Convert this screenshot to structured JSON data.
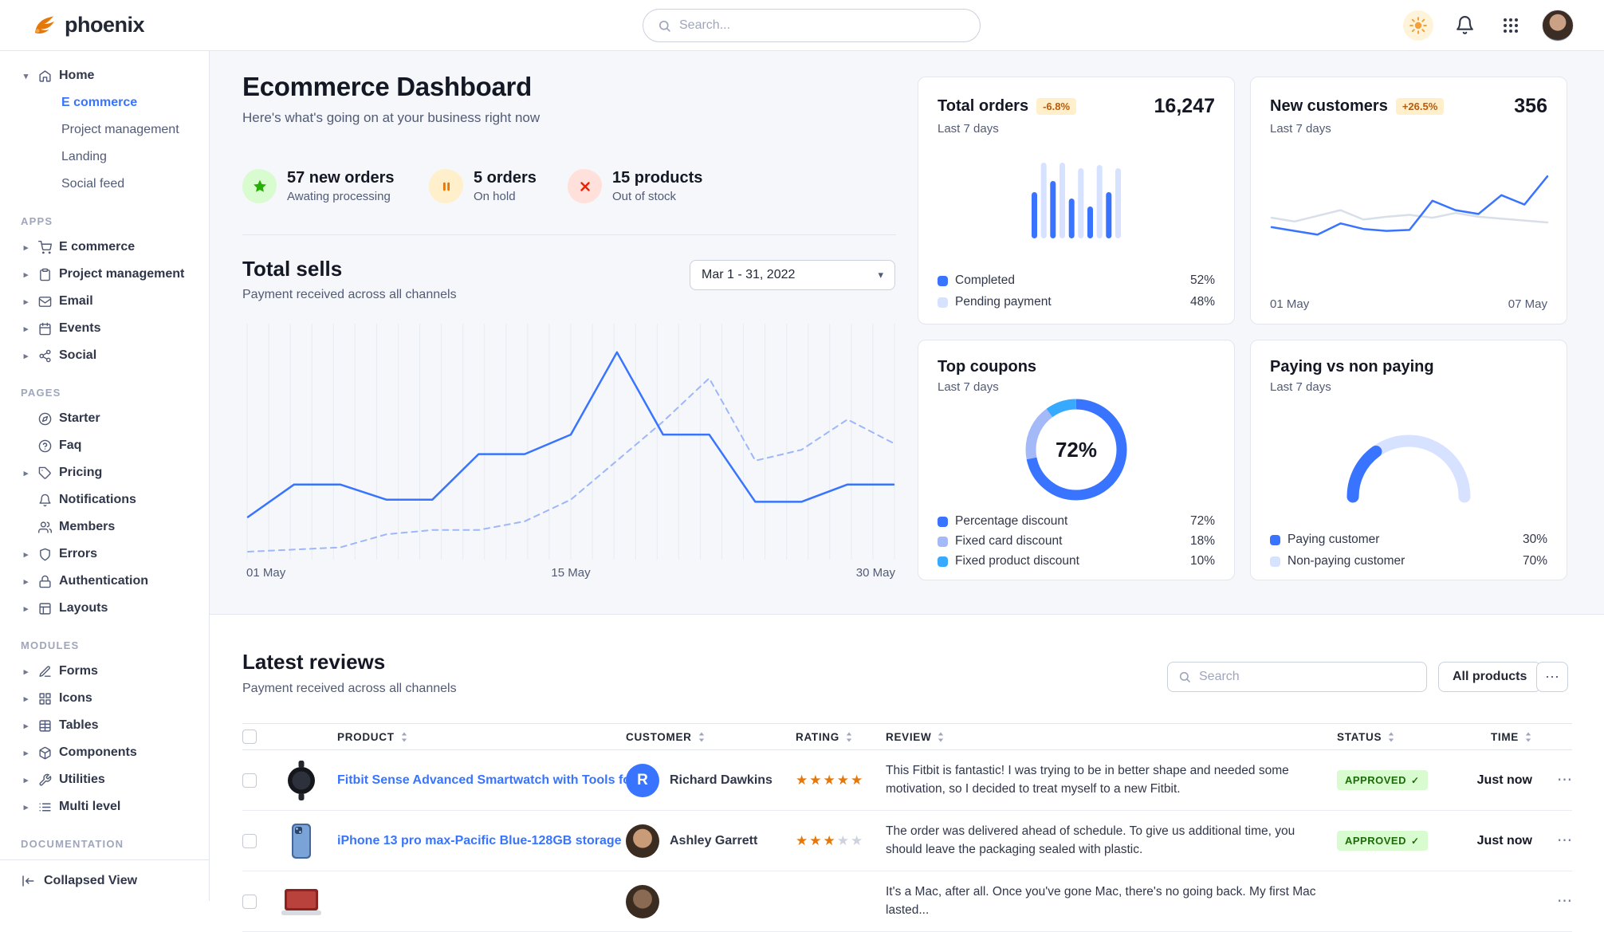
{
  "theme": {
    "primary": "#3874ff",
    "border": "#e3e6ed",
    "muted": "#525b75"
  },
  "navbar": {
    "brand": "phoenix",
    "search_placeholder": "Search...",
    "icons": [
      "phoenix-logo",
      "search",
      "theme-sun",
      "notifications-bell",
      "apps-grid",
      "user-avatar"
    ]
  },
  "sidebar": {
    "groups": [
      {
        "label": "",
        "items": [
          {
            "label": "Home",
            "icon": "home",
            "caret": true,
            "expanded": true,
            "children": [
              {
                "label": "E commerce",
                "active": true
              },
              {
                "label": "Project management",
                "active": false
              },
              {
                "label": "Landing",
                "active": false
              },
              {
                "label": "Social feed",
                "active": false
              }
            ]
          }
        ]
      },
      {
        "label": "APPS",
        "items": [
          {
            "label": "E commerce",
            "icon": "cart",
            "caret": true
          },
          {
            "label": "Project management",
            "icon": "clipboard",
            "caret": true
          },
          {
            "label": "Email",
            "icon": "mail",
            "caret": true
          },
          {
            "label": "Events",
            "icon": "calendar",
            "caret": true
          },
          {
            "label": "Social",
            "icon": "share",
            "caret": true
          }
        ]
      },
      {
        "label": "PAGES",
        "items": [
          {
            "label": "Starter",
            "icon": "compass",
            "caret": false
          },
          {
            "label": "Faq",
            "icon": "help",
            "caret": false
          },
          {
            "label": "Pricing",
            "icon": "tag",
            "caret": true
          },
          {
            "label": "Notifications",
            "icon": "bell",
            "caret": false
          },
          {
            "label": "Members",
            "icon": "users",
            "caret": false
          },
          {
            "label": "Errors",
            "icon": "shield",
            "caret": true
          },
          {
            "label": "Authentication",
            "icon": "lock",
            "caret": true
          },
          {
            "label": "Layouts",
            "icon": "layout",
            "caret": true
          }
        ]
      },
      {
        "label": "MODULES",
        "items": [
          {
            "label": "Forms",
            "icon": "edit",
            "caret": true
          },
          {
            "label": "Icons",
            "icon": "grid",
            "caret": true
          },
          {
            "label": "Tables",
            "icon": "table",
            "caret": true
          },
          {
            "label": "Components",
            "icon": "package",
            "caret": true
          },
          {
            "label": "Utilities",
            "icon": "tool",
            "caret": true
          },
          {
            "label": "Multi level",
            "icon": "list",
            "caret": true
          }
        ]
      },
      {
        "label": "DOCUMENTATION",
        "items": []
      }
    ],
    "footer_label": "Collapsed View"
  },
  "dash": {
    "title": "Ecommerce Dashboard",
    "subtitle": "Here's what's going on at your business right now",
    "stats": [
      {
        "value": "57 new orders",
        "label": "Awating processing",
        "icon": "star",
        "bg": "#d9fbd0",
        "fg": "#25b003"
      },
      {
        "value": "5 orders",
        "label": "On hold",
        "icon": "pause",
        "bg": "#ffefca",
        "fg": "#e5780b"
      },
      {
        "value": "15 products",
        "label": "Out of stock",
        "icon": "x",
        "bg": "#ffe0db",
        "fg": "#ed2000"
      }
    ]
  },
  "total_sells": {
    "title": "Total sells",
    "subtitle": "Payment received across all channels",
    "date_range": "Mar 1 - 31, 2022",
    "x_labels": [
      "01 May",
      "15 May",
      "30 May"
    ],
    "chart": {
      "type": "line",
      "grid_lines": 31,
      "series": [
        {
          "name": "current",
          "style": "solid",
          "color": "#3874ff",
          "values": [
            16,
            31,
            31,
            24,
            24,
            45,
            45,
            54,
            92,
            54,
            54,
            23,
            23,
            31,
            31
          ]
        },
        {
          "name": "previous",
          "style": "dashed",
          "color": "#9db7f9",
          "values": [
            0,
            1,
            2,
            8,
            10,
            10,
            14,
            24,
            42,
            60,
            80,
            42,
            47,
            61,
            50
          ]
        }
      ]
    }
  },
  "cards": {
    "orders": {
      "title": "Total orders",
      "badge": "-6.8%",
      "period": "Last 7 days",
      "value": "16,247",
      "chart": {
        "type": "bar",
        "values": [
          58,
          95,
          72,
          95,
          50,
          88,
          40,
          92,
          58,
          88
        ],
        "colors": [
          "#3874ff",
          "#d6e2ff"
        ]
      },
      "legend": [
        {
          "label": "Completed",
          "value": "52%",
          "color": "#3874ff"
        },
        {
          "label": "Pending payment",
          "value": "48%",
          "color": "#d6e2ff"
        }
      ]
    },
    "customers": {
      "title": "New customers",
      "badge": "+26.5%",
      "period": "Last 7 days",
      "value": "356",
      "range": [
        "01 May",
        "07 May"
      ],
      "chart": {
        "type": "line",
        "series": [
          {
            "name": "new customers",
            "style": "solid",
            "color": "#3874ff",
            "values": [
              34,
              30,
              26,
              38,
              32,
              30,
              31,
              62,
              52,
              48,
              68,
              58,
              88
            ]
          },
          {
            "name": "baseline",
            "style": "solid",
            "color": "#d8dfe8",
            "values": [
              44,
              40,
              46,
              52,
              42,
              45,
              47,
              44,
              49,
              45,
              43,
              41,
              39
            ]
          }
        ]
      }
    },
    "coupons": {
      "title": "Top coupons",
      "period": "Last 7 days",
      "center_label": "72%",
      "chart": {
        "type": "donut",
        "segments": [
          {
            "label": "Percentage discount",
            "value": 72,
            "color": "#3874ff"
          },
          {
            "label": "Fixed card discount",
            "value": 18,
            "color": "#a3b9f8"
          },
          {
            "label": "Fixed product discount",
            "value": 10,
            "color": "#37a9ff"
          }
        ]
      }
    },
    "paying": {
      "title": "Paying vs non paying",
      "period": "Last 7 days",
      "chart": {
        "type": "gauge",
        "value": 30,
        "color": "#3874ff",
        "track": "#d6e2ff"
      },
      "legend": [
        {
          "label": "Paying customer",
          "value": "30%",
          "color": "#3874ff"
        },
        {
          "label": "Non-paying customer",
          "value": "70%",
          "color": "#d6e2ff"
        }
      ]
    }
  },
  "reviews": {
    "title": "Latest reviews",
    "subtitle": "Payment received across all channels",
    "search_placeholder": "Search",
    "all_products_label": "All products",
    "columns": [
      "PRODUCT",
      "CUSTOMER",
      "RATING",
      "REVIEW",
      "STATUS",
      "TIME"
    ],
    "rows": [
      {
        "product": "Fitbit Sense Advanced Smartwatch with Tools fo...",
        "thumb": "watch",
        "customer": "Richard Dawkins",
        "avatar": {
          "type": "initial",
          "text": "R",
          "color": "#3874ff"
        },
        "rating": 5,
        "review": "This Fitbit is fantastic! I was trying to be in better shape and needed some motivation, so I decided to treat myself to a new Fitbit.",
        "status": "APPROVED",
        "time": "Just now"
      },
      {
        "product": "iPhone 13 pro max-Pacific Blue-128GB storage",
        "thumb": "phone",
        "customer": "Ashley Garrett",
        "avatar": {
          "type": "photo",
          "tone": "#c99b77"
        },
        "rating": 3,
        "review": "The order was delivered ahead of schedule. To give us additional time, you should leave the packaging sealed with plastic.",
        "status": "APPROVED",
        "time": "Just now"
      },
      {
        "product": "",
        "thumb": "laptop",
        "customer": "",
        "avatar": {
          "type": "photo",
          "tone": "#8a6a52"
        },
        "rating": null,
        "review": "It's a Mac, after all. Once you've gone Mac, there's no going back. My first Mac lasted...",
        "status": "",
        "time": ""
      }
    ]
  }
}
